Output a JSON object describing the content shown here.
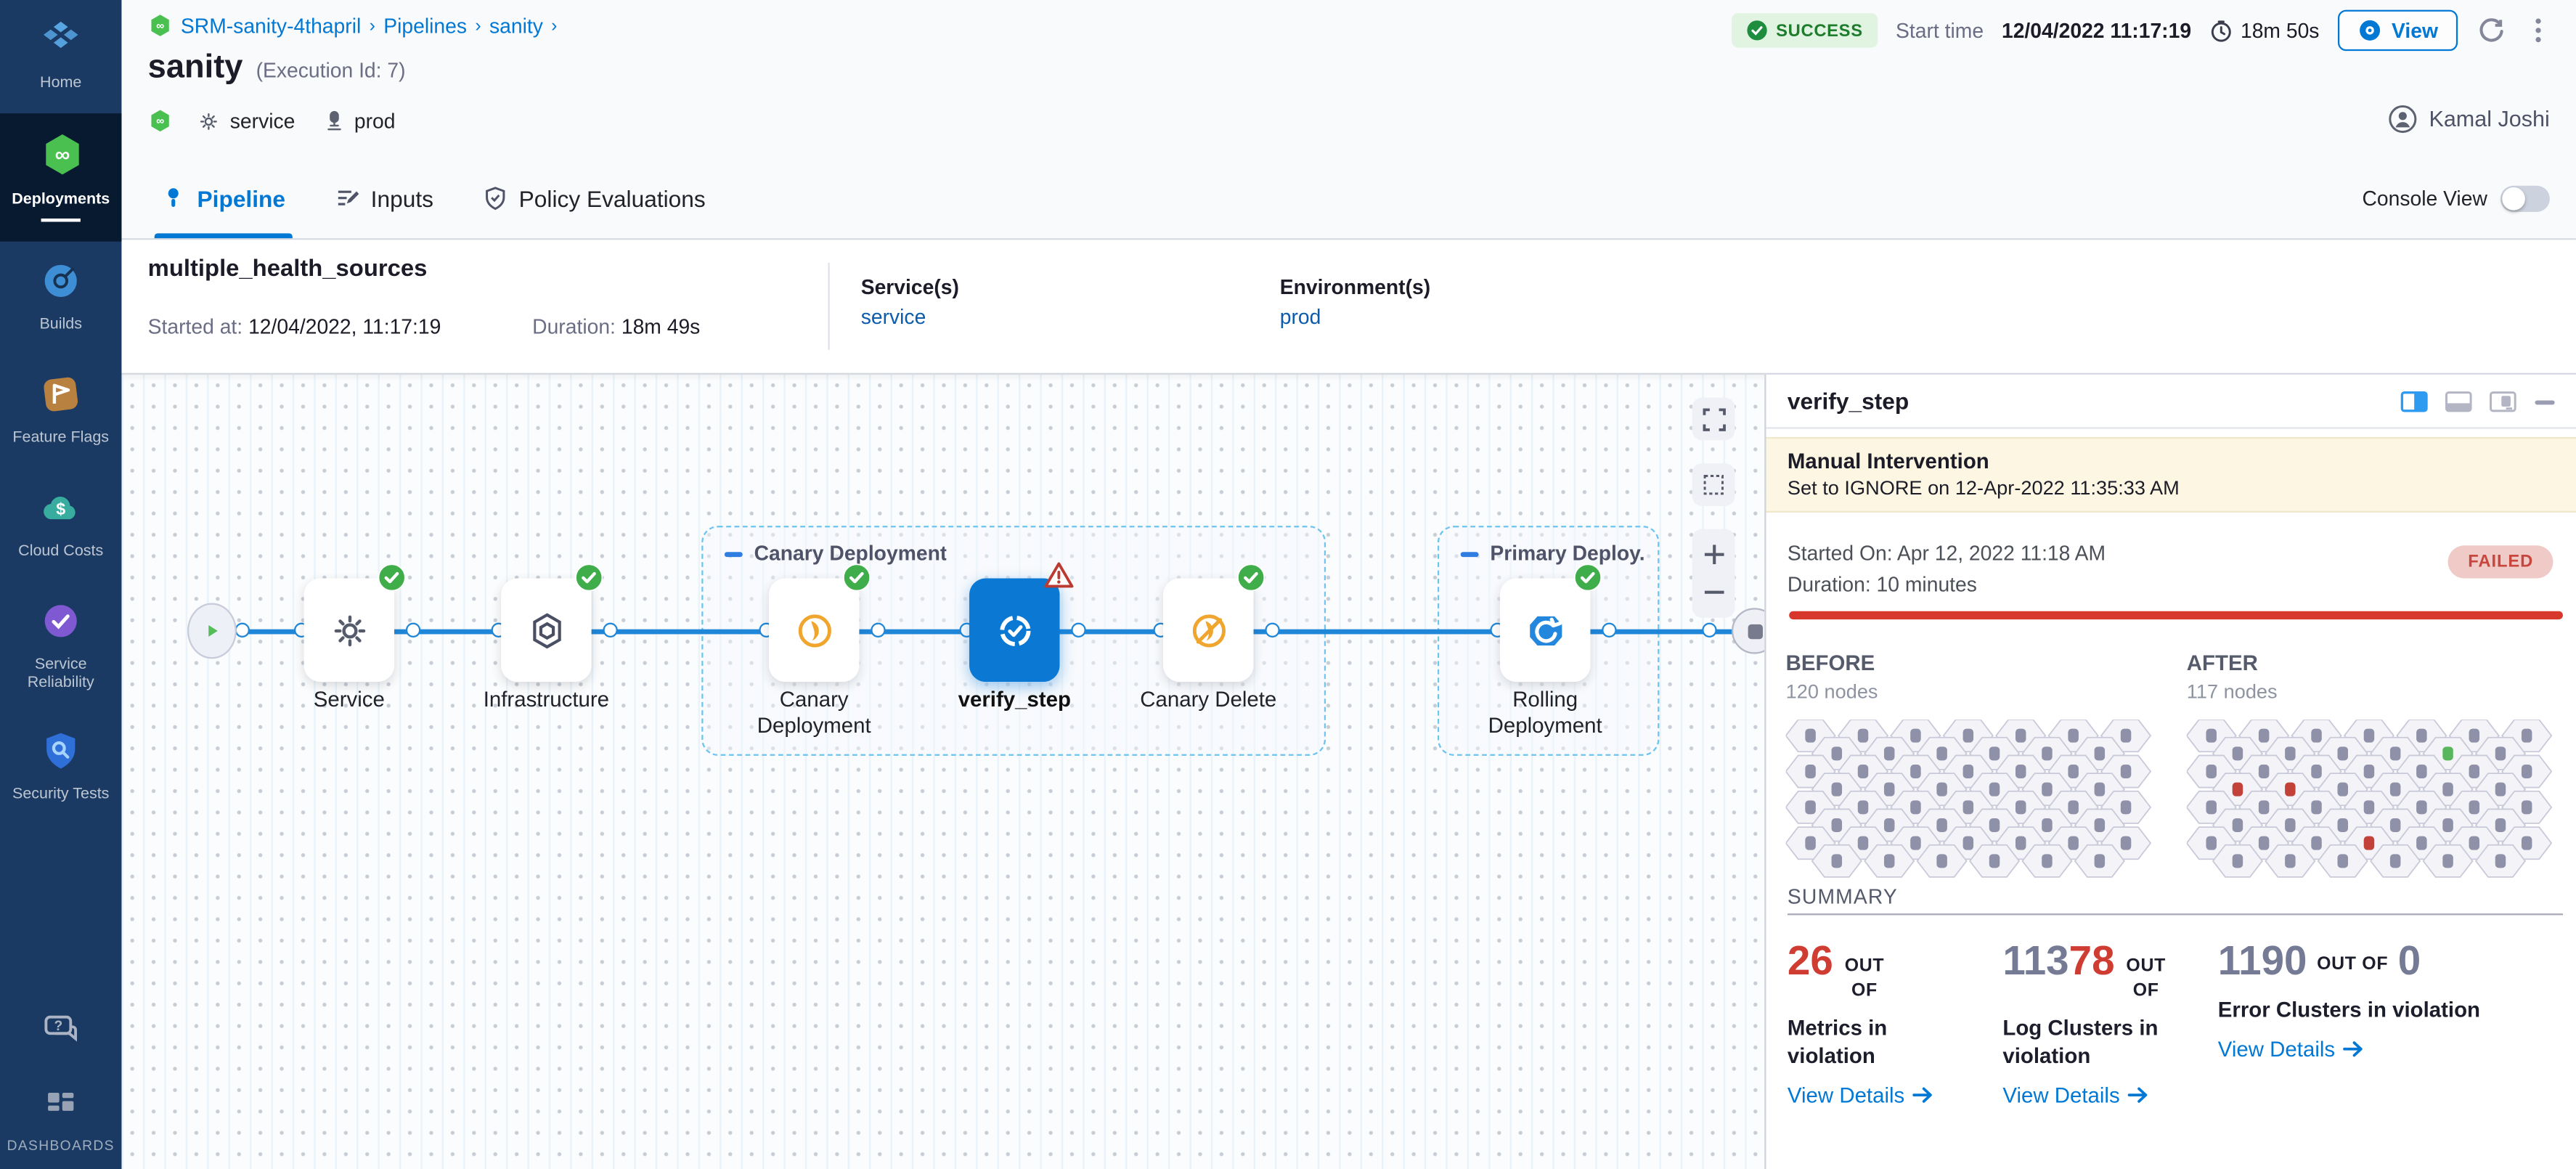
{
  "sidebar": {
    "items": [
      {
        "id": "home",
        "label": "Home",
        "active": false
      },
      {
        "id": "deployments",
        "label": "Deployments",
        "active": true
      },
      {
        "id": "builds",
        "label": "Builds",
        "active": false
      },
      {
        "id": "feature-flags",
        "label": "Feature Flags",
        "active": false
      },
      {
        "id": "cloud-costs",
        "label": "Cloud Costs",
        "active": false
      },
      {
        "id": "service-reliability",
        "label": "Service Reliability",
        "active": false
      },
      {
        "id": "security-tests",
        "label": "Security Tests",
        "active": false
      }
    ],
    "dashboards_label": "DASHBOARDS"
  },
  "header": {
    "breadcrumb": [
      "SRM-sanity-4thapril",
      "Pipelines",
      "sanity"
    ],
    "status_badge": "SUCCESS",
    "start_time_label": "Start time",
    "start_time_value": "12/04/2022 11:17:19",
    "elapsed_time": "18m 50s",
    "view_button_label": "View",
    "title": "sanity",
    "execution_id": "(Execution Id: 7)",
    "service_tag": "service",
    "environment_tag": "prod",
    "user_name": "Kamal Joshi"
  },
  "tabs": {
    "items": [
      {
        "label": "Pipeline",
        "icon": "pipeline",
        "active": true
      },
      {
        "label": "Inputs",
        "icon": "inputs",
        "active": false
      },
      {
        "label": "Policy Evaluations",
        "icon": "policy",
        "active": false
      }
    ],
    "console_view_label": "Console View",
    "console_view_on": false
  },
  "stage_bar": {
    "name": "multiple_health_sources",
    "started_label": "Started at:",
    "started_value": "12/04/2022, 11:17:19",
    "duration_label": "Duration:",
    "duration_value": "18m 49s",
    "services_label": "Service(s)",
    "services_value": "service",
    "environments_label": "Environment(s)",
    "environments_value": "prod"
  },
  "graph": {
    "groups": [
      {
        "label": "Canary Deployment"
      },
      {
        "label": "Primary Deploy..."
      }
    ],
    "nodes": [
      {
        "label": "Service",
        "icon": "gear",
        "status": "success",
        "selected": false,
        "two_line": false
      },
      {
        "label": "Infrastructure",
        "icon": "infrastructure",
        "status": "success",
        "selected": false,
        "two_line": false
      },
      {
        "label": "Canary Deployment",
        "icon": "canary",
        "status": "success",
        "selected": false,
        "two_line": true
      },
      {
        "label": "verify_step",
        "icon": "verify",
        "status": "warning",
        "selected": true,
        "two_line": false
      },
      {
        "label": "Canary Delete",
        "icon": "canary-delete",
        "status": "success",
        "selected": false,
        "two_line": false
      },
      {
        "label": "Rolling Deployment",
        "icon": "rolling",
        "status": "success",
        "selected": false,
        "two_line": true
      }
    ]
  },
  "panel": {
    "title": "verify_step",
    "banner_title": "Manual Intervention",
    "banner_subtitle": "Set to IGNORE on 12-Apr-2022 11:35:33 AM",
    "started_on": "Started On: Apr 12, 2022 11:18 AM",
    "duration": "Duration: 10 minutes",
    "status_badge": "FAILED",
    "node_grids": {
      "rows": [
        7,
        6,
        7,
        6,
        7,
        6,
        7,
        6
      ],
      "before": {
        "title": "BEFORE",
        "subtitle": "120 nodes",
        "colored_cells": []
      },
      "after": {
        "title": "AFTER",
        "subtitle": "117 nodes",
        "colored_cells": [
          {
            "row": 1,
            "index": 4,
            "color": "green"
          },
          {
            "row": 3,
            "index": 0,
            "color": "red"
          },
          {
            "row": 3,
            "index": 1,
            "color": "red"
          },
          {
            "row": 6,
            "index": 3,
            "color": "red"
          }
        ]
      }
    },
    "summary": {
      "title": "SUMMARY",
      "stats": [
        {
          "parts": [
            {
              "text": "26",
              "color": "red"
            }
          ],
          "out_of": "OUT OF",
          "total": "",
          "label": "Metrics in violation",
          "link": "View Details",
          "wrap_out_of": true
        },
        {
          "parts": [
            {
              "text": "113",
              "color": "gray"
            },
            {
              "text": "78",
              "color": "red"
            }
          ],
          "out_of": "OUT OF",
          "total": "",
          "label": "Log Clusters in violation",
          "link": "View Details",
          "wrap_out_of": true
        },
        {
          "parts": [
            {
              "text": "1190",
              "color": "gray"
            }
          ],
          "out_of": "OUT OF",
          "total": "0",
          "label": "Error Clusters in violation",
          "link": "View Details",
          "wrap_out_of": false
        }
      ]
    }
  },
  "colors": {
    "accent_blue": "#0278d5",
    "success_green": "#3fae4a",
    "failed_red": "#cf3c31",
    "banner_bg": "#fcf6e2",
    "sidebar_bg": "#1b3a63",
    "hex_dot_gray": "#8e91a8",
    "hex_dot_red": "#c2423a",
    "hex_dot_green": "#58b75c"
  }
}
